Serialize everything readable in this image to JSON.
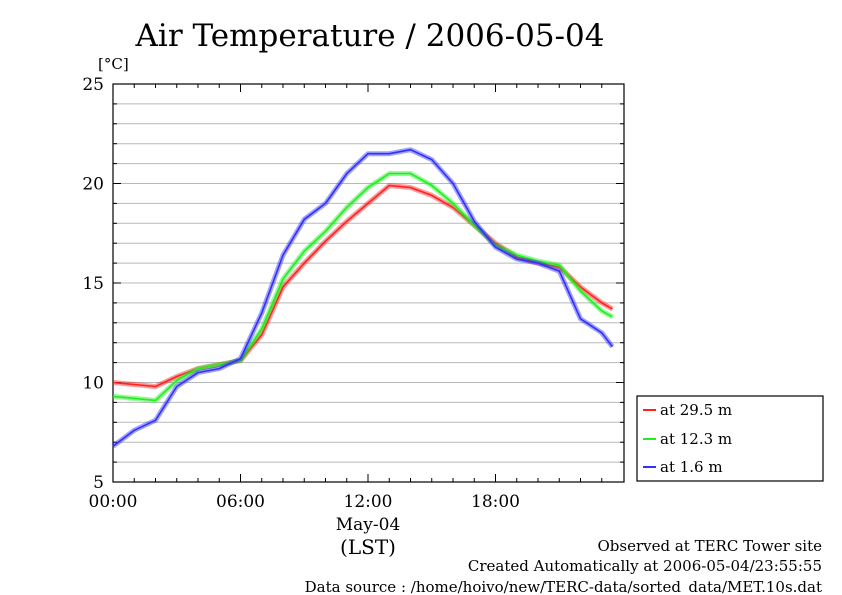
{
  "chart_data": {
    "type": "line",
    "title": "Air Temperature / 2006-05-04",
    "ylabel": "[°C]",
    "xlabel": "(LST)",
    "date_label": "May-04",
    "ylim": [
      5,
      25
    ],
    "yticks": [
      "5",
      "10",
      "15",
      "20",
      "25"
    ],
    "xlim_hours": [
      0,
      23.5
    ],
    "xticks": [
      {
        "h": 0,
        "label": "00:00"
      },
      {
        "h": 6,
        "label": "06:00"
      },
      {
        "h": 12,
        "label": "12:00"
      },
      {
        "h": 18,
        "label": "18:00"
      }
    ],
    "grid": true,
    "legend_position": "right-bottom",
    "x_hours": [
      0,
      1,
      2,
      3,
      4,
      5,
      6,
      7,
      8,
      9,
      10,
      11,
      12,
      13,
      14,
      15,
      16,
      17,
      18,
      19,
      20,
      21,
      22,
      23,
      23.5
    ],
    "series": [
      {
        "name": "at 29.5 m",
        "color": "#ff2020",
        "values": [
          10.0,
          9.9,
          9.8,
          10.3,
          10.7,
          10.9,
          11.1,
          12.4,
          14.8,
          16.0,
          17.1,
          18.1,
          19.0,
          19.9,
          19.8,
          19.4,
          18.8,
          17.9,
          17.0,
          16.3,
          16.0,
          15.8,
          14.8,
          14.0,
          13.7
        ]
      },
      {
        "name": "at 12.3 m",
        "color": "#20ee20",
        "values": [
          9.3,
          9.2,
          9.1,
          10.1,
          10.7,
          10.9,
          11.1,
          12.7,
          15.2,
          16.6,
          17.6,
          18.8,
          19.8,
          20.5,
          20.5,
          19.9,
          19.0,
          17.9,
          16.9,
          16.4,
          16.1,
          15.9,
          14.6,
          13.6,
          13.3
        ]
      },
      {
        "name": "at 1.6 m",
        "color": "#3030ff",
        "values": [
          6.8,
          7.6,
          8.1,
          9.8,
          10.5,
          10.7,
          11.2,
          13.5,
          16.4,
          18.2,
          19.0,
          20.5,
          21.5,
          21.5,
          21.7,
          21.2,
          20.0,
          18.1,
          16.8,
          16.2,
          16.0,
          15.6,
          13.2,
          12.5,
          11.8
        ]
      }
    ]
  },
  "footer": {
    "line1": "Observed at TERC Tower site",
    "line2": "Created Automatically at 2006-05-04/23:55:55",
    "line3": "Data source : /home/hoivo/new/TERC-data/sorted_data/MET.10s.dat"
  }
}
